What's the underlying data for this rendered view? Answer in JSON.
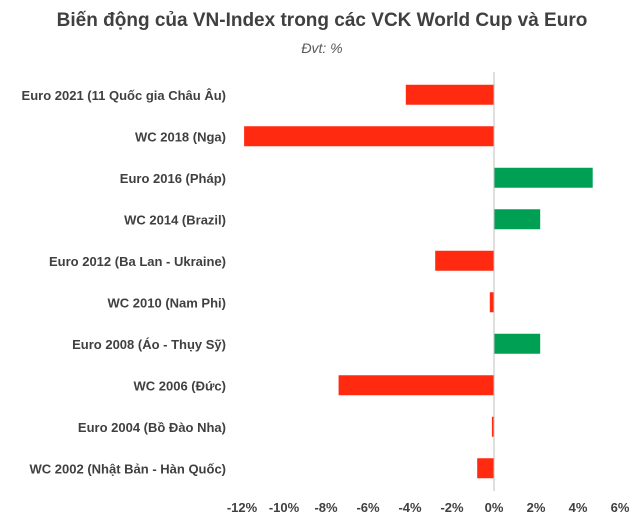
{
  "chart_data": {
    "type": "bar",
    "orientation": "horizontal",
    "title": "Biến động của VN-Index trong các VCK World Cup và Euro",
    "subtitle": "Đvt: %",
    "categories": [
      "Euro 2021 (11 Quốc gia Châu Âu)",
      "WC 2018 (Nga)",
      "Euro 2016 (Pháp)",
      "WC 2014 (Brazil)",
      "Euro 2012 (Ba Lan - Ukraine)",
      "WC 2010 (Nam Phi)",
      "Euro 2008 (Áo - Thụy Sỹ)",
      "WC 2006 (Đức)",
      "Euro 2004 (Bồ Đào Nha)",
      "WC 2002 (Nhật Bản - Hàn Quốc)"
    ],
    "values": [
      -4.2,
      -11.9,
      4.7,
      2.2,
      -2.8,
      -0.2,
      2.2,
      -7.4,
      -0.1,
      -0.8
    ],
    "xlim": [
      -12,
      6
    ],
    "xticks": [
      -12,
      -10,
      -8,
      -6,
      -4,
      -2,
      0,
      2,
      4,
      6
    ],
    "xtick_labels": [
      "-12%",
      "-10%",
      "-8%",
      "-6%",
      "-4%",
      "-2%",
      "0%",
      "2%",
      "4%",
      "6%"
    ],
    "colors": {
      "negative": "#ff2a0f",
      "positive": "#00a054",
      "axis": "#bfbfbf"
    },
    "grid": false,
    "legend": "none"
  }
}
